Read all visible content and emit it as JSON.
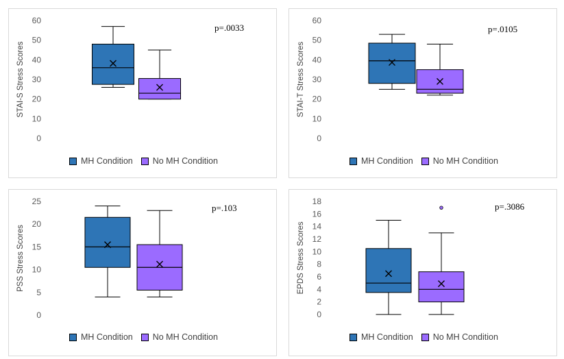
{
  "chart_data": [
    {
      "type": "box",
      "ylabel": "STAI-S Stress Scores",
      "ylim": [
        0,
        60
      ],
      "yticks": [
        0,
        10,
        20,
        30,
        40,
        50,
        60
      ],
      "annotation": "p=.0033",
      "legend_position": "bottom",
      "series": [
        {
          "name": "MH Condition",
          "color": "#2e75b6",
          "min": 26,
          "q1": 27.5,
          "median": 36,
          "q3": 48,
          "max": 57,
          "mean": 38.2,
          "outliers": []
        },
        {
          "name": "No MH Condition",
          "color": "#9b6bff",
          "min": 20,
          "q1": 20,
          "median": 23,
          "q3": 30.5,
          "max": 45,
          "mean": 26,
          "outliers": []
        }
      ]
    },
    {
      "type": "box",
      "ylabel": "STAI-T Stress Scores",
      "ylim": [
        0,
        60
      ],
      "yticks": [
        0,
        10,
        20,
        30,
        40,
        50,
        60
      ],
      "annotation": "p=.0105",
      "legend_position": "bottom",
      "series": [
        {
          "name": "MH Condition",
          "color": "#2e75b6",
          "min": 25,
          "q1": 28,
          "median": 39.5,
          "q3": 48.5,
          "max": 53,
          "mean": 38.7,
          "outliers": []
        },
        {
          "name": "No MH Condition",
          "color": "#9b6bff",
          "min": 22,
          "q1": 23,
          "median": 25,
          "q3": 35,
          "max": 48,
          "mean": 29,
          "outliers": []
        }
      ]
    },
    {
      "type": "box",
      "ylabel": "PSS Stress Scores",
      "ylim": [
        0,
        25
      ],
      "yticks": [
        0,
        5,
        10,
        15,
        20,
        25
      ],
      "annotation": "p=.103",
      "legend_position": "bottom",
      "series": [
        {
          "name": "MH Condition",
          "color": "#2e75b6",
          "min": 4,
          "q1": 10.5,
          "median": 15,
          "q3": 21.5,
          "max": 24,
          "mean": 15.5,
          "outliers": []
        },
        {
          "name": "No MH Condition",
          "color": "#9b6bff",
          "min": 4,
          "q1": 5.5,
          "median": 10.5,
          "q3": 15.5,
          "max": 23,
          "mean": 11.2,
          "outliers": []
        }
      ]
    },
    {
      "type": "box",
      "ylabel": "EPDS Stress Scores",
      "ylim": [
        0,
        18
      ],
      "yticks": [
        0,
        2,
        4,
        6,
        8,
        10,
        12,
        14,
        16,
        18
      ],
      "annotation": "p=.3086",
      "legend_position": "bottom",
      "series": [
        {
          "name": "MH Condition",
          "color": "#2e75b6",
          "min": 0,
          "q1": 3.5,
          "median": 5,
          "q3": 10.5,
          "max": 15,
          "mean": 6.5,
          "outliers": []
        },
        {
          "name": "No MH Condition",
          "color": "#9b6bff",
          "min": 0,
          "q1": 2,
          "median": 4,
          "q3": 6.8,
          "max": 13,
          "mean": 4.9,
          "outliers": [
            17
          ]
        }
      ]
    }
  ]
}
